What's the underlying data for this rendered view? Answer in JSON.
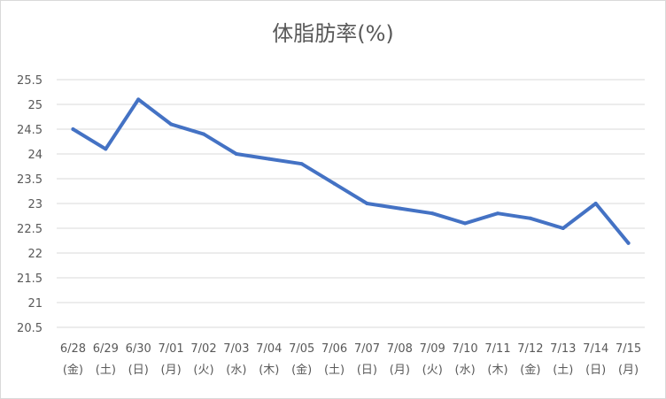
{
  "chart_data": {
    "type": "line",
    "title": "体脂肪率(%)",
    "categories": [
      [
        "6/28",
        "(金)"
      ],
      [
        "6/29",
        "(土)"
      ],
      [
        "6/30",
        "(日)"
      ],
      [
        "7/01",
        "(月)"
      ],
      [
        "7/02",
        "(火)"
      ],
      [
        "7/03",
        "(水)"
      ],
      [
        "7/04",
        "(木)"
      ],
      [
        "7/05",
        "(金)"
      ],
      [
        "7/06",
        "(土)"
      ],
      [
        "7/07",
        "(日)"
      ],
      [
        "7/08",
        "(月)"
      ],
      [
        "7/09",
        "(火)"
      ],
      [
        "7/10",
        "(水)"
      ],
      [
        "7/11",
        "(木)"
      ],
      [
        "7/12",
        "(金)"
      ],
      [
        "7/13",
        "(土)"
      ],
      [
        "7/14",
        "(日)"
      ],
      [
        "7/15",
        "(月)"
      ]
    ],
    "series": [
      {
        "values": [
          24.5,
          24.1,
          25.1,
          24.6,
          24.4,
          24.0,
          23.9,
          23.8,
          23.4,
          23.0,
          22.9,
          22.8,
          22.6,
          22.8,
          22.7,
          22.5,
          23.0,
          22.2
        ],
        "color": "#4472c4"
      }
    ],
    "ylim": [
      20.5,
      25.5
    ],
    "yticks": [
      "20.5",
      "21",
      "21.5",
      "22",
      "22.5",
      "23",
      "23.5",
      "24",
      "24.5",
      "25",
      "25.5"
    ],
    "grid": true,
    "legend": "none"
  }
}
